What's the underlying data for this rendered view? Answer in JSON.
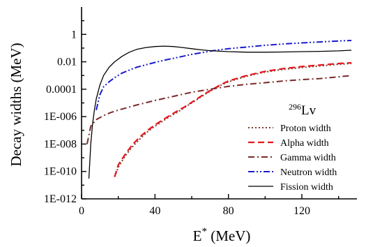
{
  "chart_data": {
    "type": "line",
    "title": "",
    "xlabel": "E",
    "xlabel_sup": "*",
    "xlabel_unit": " (MeV)",
    "ylabel": "Decay widths (MeV)",
    "xlim": [
      0,
      150
    ],
    "ylim_log10": [
      -12,
      2
    ],
    "yscale": "log",
    "x_ticks": [
      {
        "value": 0,
        "label": "0"
      },
      {
        "value": 40,
        "label": "40"
      },
      {
        "value": 80,
        "label": "80"
      },
      {
        "value": 120,
        "label": "120"
      }
    ],
    "y_ticks": [
      {
        "value": 1,
        "label": "1"
      },
      {
        "value": 0.01,
        "label": "0.01"
      },
      {
        "value": 0.0001,
        "label": "0.0001"
      },
      {
        "value": 1e-06,
        "label": "1E-006"
      },
      {
        "value": 1e-08,
        "label": "1E-008"
      },
      {
        "value": 1e-10,
        "label": "1E-010"
      },
      {
        "value": 1e-12,
        "label": "1E-012"
      }
    ],
    "annotation": {
      "sup": "296",
      "text": "Lv"
    },
    "legend_position": "bottom-right",
    "series": [
      {
        "name": "Proton width",
        "color": "#7a3b2e",
        "dash": "dotted",
        "x": [
          18,
          20,
          24,
          28,
          32,
          36,
          40,
          44,
          48,
          52,
          56,
          60,
          64,
          68,
          72,
          76,
          80,
          90,
          100,
          110,
          120,
          130,
          140,
          147
        ],
        "y": [
          4e-11,
          2e-10,
          1.5e-09,
          7e-09,
          2.5e-08,
          8e-08,
          2e-07,
          4.5e-07,
          1e-06,
          2e-06,
          4.5e-06,
          1e-05,
          2.2e-05,
          5e-05,
          0.0001,
          0.0002,
          0.00035,
          0.0009,
          0.0018,
          0.0028,
          0.0038,
          0.005,
          0.0065,
          0.0075
        ]
      },
      {
        "name": "Alpha width",
        "color": "#e8141c",
        "dash": "dashed",
        "x": [
          18,
          20,
          24,
          28,
          32,
          36,
          40,
          44,
          48,
          52,
          56,
          60,
          64,
          68,
          72,
          76,
          80,
          90,
          100,
          110,
          120,
          130,
          140,
          147
        ],
        "y": [
          4e-11,
          3e-10,
          2e-09,
          1e-08,
          3.5e-08,
          1e-07,
          2.5e-07,
          5.5e-07,
          1.2e-06,
          2.5e-06,
          5e-06,
          1.1e-05,
          2.5e-05,
          5.5e-05,
          0.00011,
          0.00022,
          0.0004,
          0.001,
          0.002,
          0.0032,
          0.0045,
          0.0058,
          0.0075,
          0.0085
        ]
      },
      {
        "name": "Gamma width",
        "color": "#7a2a2a",
        "dash": "dashdot",
        "x": [
          3,
          5,
          8,
          12,
          16,
          20,
          30,
          40,
          50,
          60,
          70,
          80,
          90,
          100,
          110,
          120,
          130,
          140,
          147
        ],
        "y": [
          1e-08,
          2e-07,
          6e-07,
          1.2e-06,
          2e-06,
          3e-06,
          7e-06,
          1.5e-05,
          3e-05,
          6e-05,
          0.0001,
          0.00016,
          0.00023,
          0.0003,
          0.0004,
          0.0005,
          0.0006,
          0.0008,
          0.001
        ]
      },
      {
        "name": "Neutron width",
        "color": "#1a1acd",
        "dash": "dashdotdot",
        "x": [
          8,
          10,
          12,
          15,
          18,
          22,
          26,
          30,
          35,
          40,
          45,
          50,
          55,
          60,
          65,
          70,
          75,
          80,
          90,
          100,
          110,
          120,
          130,
          140,
          147
        ],
        "y": [
          3e-06,
          4e-05,
          0.00015,
          0.00035,
          0.0007,
          0.0015,
          0.0025,
          0.004,
          0.006,
          0.009,
          0.013,
          0.018,
          0.025,
          0.035,
          0.045,
          0.06,
          0.075,
          0.09,
          0.12,
          0.16,
          0.2,
          0.24,
          0.28,
          0.33,
          0.36
        ]
      },
      {
        "name": "Fission width",
        "color": "#000000",
        "dash": "solid",
        "x": [
          4,
          5,
          6,
          7,
          8,
          10,
          12,
          15,
          18,
          22,
          26,
          30,
          35,
          40,
          45,
          50,
          55,
          60,
          65,
          70,
          80,
          90,
          100,
          110,
          120,
          130,
          140,
          147
        ],
        "y": [
          3e-11,
          1e-08,
          3e-07,
          3e-06,
          2e-05,
          0.0002,
          0.001,
          0.004,
          0.01,
          0.025,
          0.05,
          0.08,
          0.11,
          0.13,
          0.14,
          0.13,
          0.11,
          0.09,
          0.075,
          0.065,
          0.055,
          0.05,
          0.05,
          0.052,
          0.055,
          0.058,
          0.063,
          0.07
        ]
      }
    ]
  }
}
